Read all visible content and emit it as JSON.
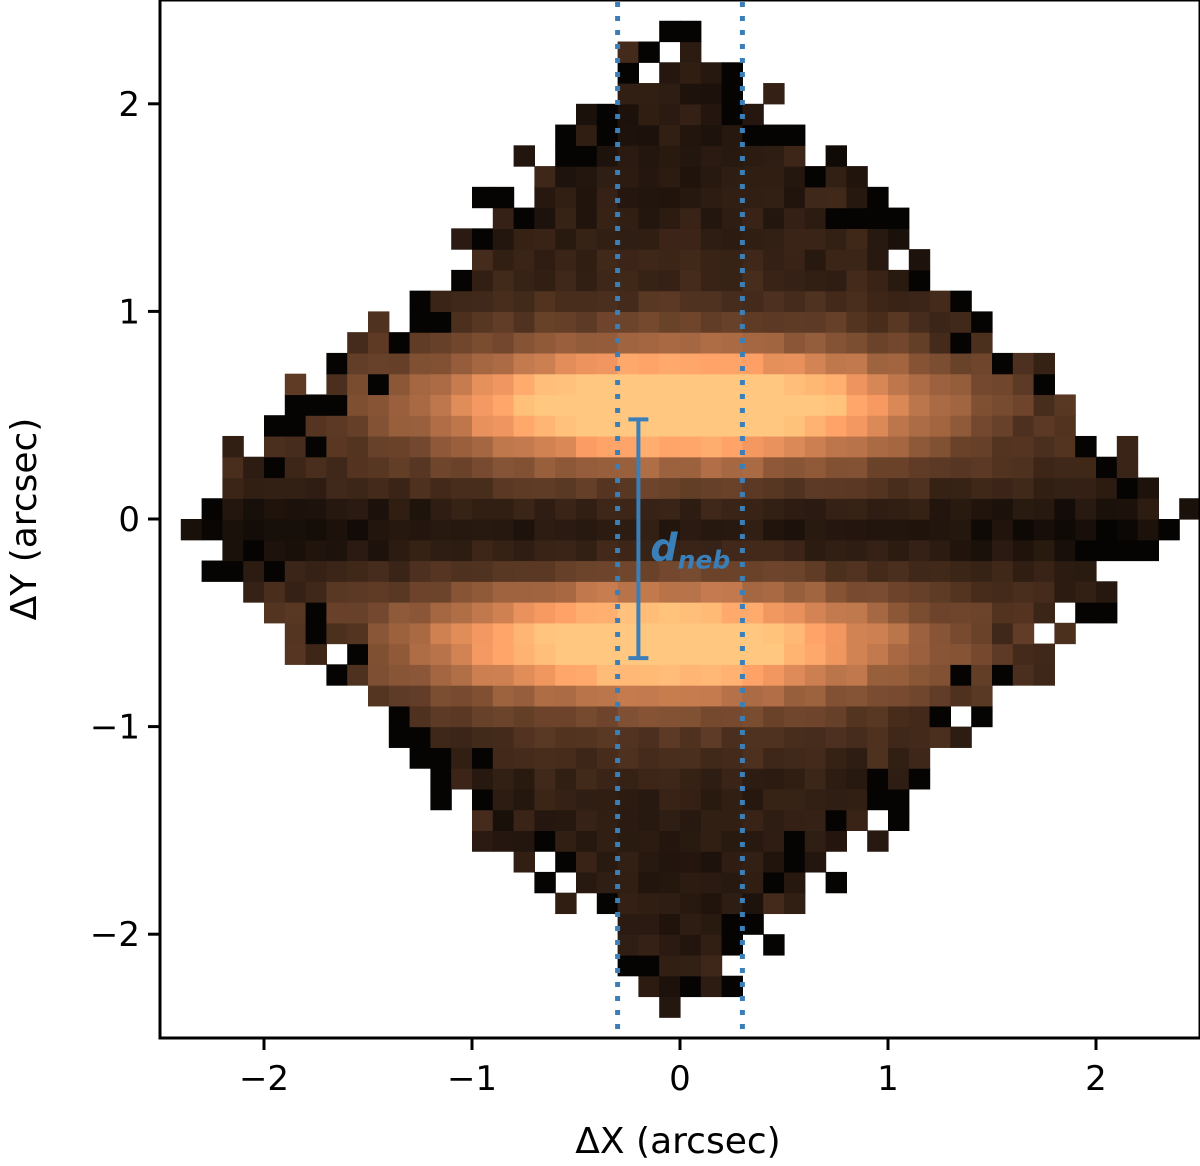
{
  "chart_data": {
    "type": "heatmap",
    "xlabel": "ΔX (arcsec)",
    "ylabel": "ΔY (arcsec)",
    "xlim": [
      -2.5,
      2.5
    ],
    "ylim": [
      -2.5,
      2.5
    ],
    "xticks": [
      -2,
      -1,
      0,
      1,
      2
    ],
    "yticks": [
      -2,
      -1,
      0,
      1,
      2
    ],
    "xtick_labels": [
      "−2",
      "−1",
      "0",
      "1",
      "2"
    ],
    "ytick_labels": [
      "−2",
      "−1",
      "0",
      "1",
      "2"
    ],
    "grid": false,
    "colormap": "copper",
    "pixel_size_arcsec": 0.1,
    "footprint": "diamond, |ΔX| + |ΔY| ≤ ~2.35 arcsec",
    "lobes": [
      {
        "center": [
          0.0,
          0.55
        ],
        "intensity": 1.0,
        "extent": "bright band, ΔY ≈ 0.2 to 0.8"
      },
      {
        "center": [
          -0.1,
          -0.6
        ],
        "intensity": 0.9,
        "extent": "bright band, ΔY ≈ -0.4 to -0.85"
      }
    ],
    "dark_lane_y": -0.05,
    "vertical_lines": [
      {
        "x": -0.3,
        "style": "dotted",
        "color": "#3a7fb8"
      },
      {
        "x": 0.3,
        "style": "dotted",
        "color": "#3a7fb8"
      }
    ],
    "annotations": [
      {
        "label_main": "d",
        "label_sub": "neb",
        "color": "#3a7fb8",
        "segment": {
          "x": -0.2,
          "y_start": -0.67,
          "y_end": 0.48
        }
      }
    ],
    "colors": {
      "annotation": "#3a7fb8",
      "axes": "#000000"
    }
  }
}
